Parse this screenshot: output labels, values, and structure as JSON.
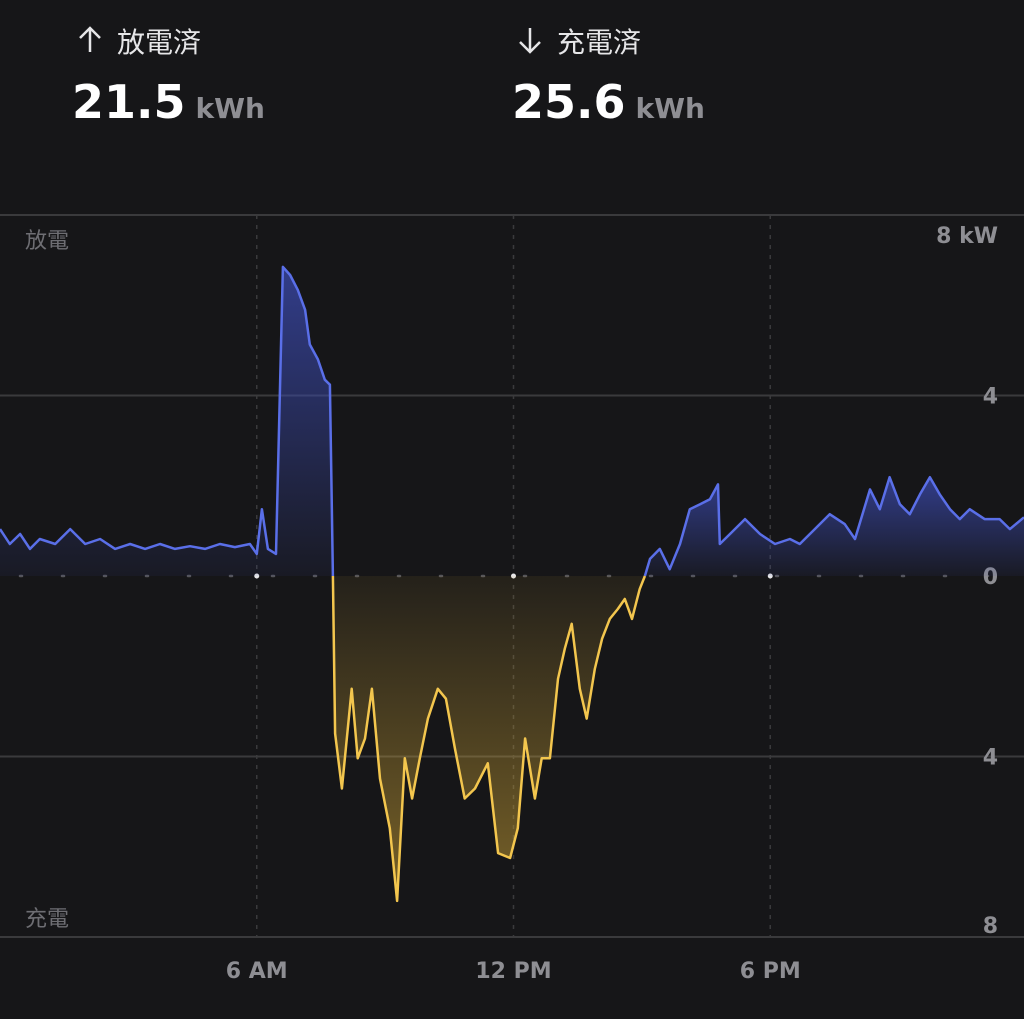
{
  "summary": {
    "discharged": {
      "label": "放電済",
      "value": "21.5",
      "unit": "kWh"
    },
    "charged": {
      "label": "充電済",
      "value": "25.6",
      "unit": "kWh"
    }
  },
  "chart_data": {
    "type": "area",
    "xlim": [
      0,
      24
    ],
    "ylim": [
      -8,
      8
    ],
    "xticks": [
      {
        "value": 6,
        "label": "6 AM"
      },
      {
        "value": 12,
        "label": "12 PM"
      },
      {
        "value": 18,
        "label": "6 PM"
      }
    ],
    "yticks": [
      {
        "value": 8,
        "label": "8 kW"
      },
      4,
      0,
      {
        "value": -4,
        "label": "4"
      },
      {
        "value": -8,
        "label": "8"
      }
    ],
    "grid": true,
    "x": [
      0,
      0.23,
      0.47,
      0.7,
      0.93,
      1.29,
      1.64,
      1.99,
      2.34,
      2.69,
      3.04,
      3.39,
      3.74,
      4.09,
      4.44,
      4.79,
      5.14,
      5.49,
      5.84,
      6.0,
      6.12,
      6.26,
      6.45,
      6.61,
      6.78,
      6.96,
      7.13,
      7.24,
      7.43,
      7.59,
      7.71,
      7.78,
      7.83,
      7.99,
      8.22,
      8.36,
      8.53,
      8.69,
      8.88,
      9.11,
      9.28,
      9.46,
      9.63,
      9.81,
      10.0,
      10.23,
      10.42,
      10.63,
      10.86,
      11.1,
      11.4,
      11.64,
      11.92,
      12.1,
      12.27,
      12.5,
      12.66,
      12.85,
      13.04,
      13.2,
      13.36,
      13.55,
      13.71,
      13.9,
      14.07,
      14.25,
      14.44,
      14.6,
      14.77,
      14.95,
      15.07,
      15.19,
      15.42,
      15.65,
      15.89,
      16.12,
      16.36,
      16.59,
      16.78,
      16.82,
      17.06,
      17.41,
      17.76,
      18.11,
      18.46,
      18.69,
      19.04,
      19.39,
      19.74,
      19.98,
      20.33,
      20.56,
      20.79,
      21.03,
      21.26,
      21.5,
      21.73,
      21.96,
      22.2,
      22.43,
      22.66,
      23.01,
      23.36,
      23.6,
      23.93
    ],
    "series": [
      {
        "name": "放電",
        "color": "#5a6fe8",
        "values": [
          1.04,
          0.71,
          0.93,
          0.6,
          0.82,
          0.71,
          1.04,
          0.71,
          0.82,
          0.6,
          0.71,
          0.6,
          0.71,
          0.6,
          0.66,
          0.6,
          0.71,
          0.64,
          0.71,
          0.49,
          1.48,
          0.6,
          0.49,
          6.85,
          6.67,
          6.34,
          5.9,
          5.13,
          4.8,
          4.35,
          4.24,
          0,
          null,
          null,
          null,
          null,
          null,
          null,
          null,
          null,
          null,
          null,
          null,
          null,
          null,
          null,
          null,
          null,
          null,
          null,
          null,
          null,
          null,
          null,
          null,
          null,
          null,
          null,
          null,
          null,
          null,
          null,
          null,
          null,
          null,
          null,
          null,
          null,
          null,
          null,
          0,
          0.38,
          0.6,
          0.15,
          0.71,
          1.48,
          1.59,
          1.7,
          2.03,
          0.71,
          0.93,
          1.26,
          0.93,
          0.71,
          0.82,
          0.71,
          1.04,
          1.37,
          1.15,
          0.82,
          1.92,
          1.48,
          2.19,
          1.59,
          1.37,
          1.81,
          2.19,
          1.81,
          1.48,
          1.26,
          1.48,
          1.26,
          1.26,
          1.04,
          1.3
        ]
      },
      {
        "name": "充電",
        "color": "#f3c64e",
        "values": [
          null,
          null,
          null,
          null,
          null,
          null,
          null,
          null,
          null,
          null,
          null,
          null,
          null,
          null,
          null,
          null,
          null,
          null,
          null,
          null,
          null,
          null,
          null,
          null,
          null,
          null,
          null,
          null,
          null,
          null,
          null,
          0,
          -3.49,
          -4.71,
          -2.5,
          -4.04,
          -3.6,
          -2.5,
          -4.49,
          -5.59,
          -7.2,
          -4.04,
          -4.93,
          -4.04,
          -3.16,
          -2.5,
          -2.72,
          -3.82,
          -4.93,
          -4.71,
          -4.15,
          -6.14,
          -6.25,
          -5.59,
          -3.6,
          -4.93,
          -4.04,
          -4.04,
          -2.28,
          -1.61,
          -1.06,
          -2.5,
          -3.16,
          -2.06,
          -1.39,
          -0.95,
          -0.73,
          -0.51,
          -0.95,
          -0.29,
          0,
          null,
          null,
          null,
          null,
          null,
          null,
          null,
          null,
          null,
          null,
          null,
          null,
          null,
          null,
          null,
          null,
          null,
          null,
          null,
          null,
          null,
          null,
          null,
          null,
          null,
          null,
          null,
          null,
          null,
          null,
          null,
          null,
          null,
          null
        ]
      }
    ]
  }
}
